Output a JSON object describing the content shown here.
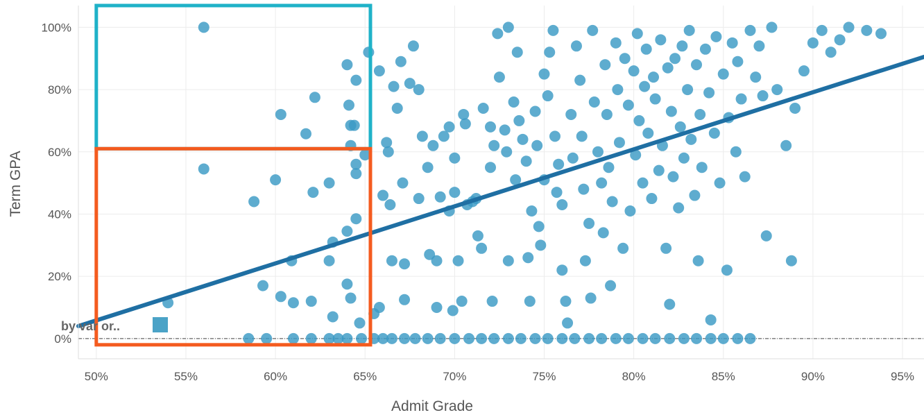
{
  "chart_data": {
    "type": "scatter",
    "xlabel": "Admit Grade",
    "ylabel": "Term GPA",
    "xlim": [
      0.49,
      0.962
    ],
    "ylim": [
      -0.065,
      1.07
    ],
    "x_ticks": [
      "50%",
      "55%",
      "60%",
      "65%",
      "70%",
      "75%",
      "80%",
      "85%",
      "90%",
      "95%"
    ],
    "x_tick_values": [
      0.5,
      0.55,
      0.6,
      0.65,
      0.7,
      0.75,
      0.8,
      0.85,
      0.9,
      0.95
    ],
    "y_ticks": [
      "0%",
      "20%",
      "40%",
      "60%",
      "80%",
      "100%"
    ],
    "y_tick_values": [
      0,
      0.2,
      0.4,
      0.6,
      0.8,
      1.0
    ],
    "grid": true,
    "legend": {
      "text": "by var or..",
      "placement": "bottom-left",
      "color": "#4ba3c7"
    },
    "point_color": "#3a9ac4",
    "trend_color": "#1f6fa3",
    "box_colors": {
      "upper": "#1fb2c8",
      "lower": "#f45b1f"
    },
    "trendline": {
      "x": [
        0.49,
        0.962
      ],
      "y": [
        0.04,
        0.905
      ]
    },
    "highlight_boxes": [
      {
        "x": [
          0.5,
          0.653
        ],
        "y": [
          0.61,
          1.07
        ]
      },
      {
        "x": [
          0.5,
          0.653
        ],
        "y": [
          -0.02,
          0.61
        ]
      }
    ],
    "points": [
      [
        0.56,
        1.0
      ],
      [
        0.56,
        0.545
      ],
      [
        0.54,
        0.115
      ],
      [
        0.588,
        0.44
      ],
      [
        0.593,
        0.17
      ],
      [
        0.6,
        0.51
      ],
      [
        0.603,
        0.72
      ],
      [
        0.603,
        0.135
      ],
      [
        0.609,
        0.25
      ],
      [
        0.61,
        0.115
      ],
      [
        0.617,
        0.658
      ],
      [
        0.62,
        0.12
      ],
      [
        0.621,
        0.47
      ],
      [
        0.622,
        0.775
      ],
      [
        0.63,
        0.5
      ],
      [
        0.63,
        0.25
      ],
      [
        0.632,
        0.31
      ],
      [
        0.632,
        0.07
      ],
      [
        0.64,
        0.88
      ],
      [
        0.641,
        0.75
      ],
      [
        0.642,
        0.62
      ],
      [
        0.642,
        0.685
      ],
      [
        0.644,
        0.685
      ],
      [
        0.645,
        0.83
      ],
      [
        0.645,
        0.56
      ],
      [
        0.645,
        0.53
      ],
      [
        0.645,
        0.385
      ],
      [
        0.64,
        0.345
      ],
      [
        0.64,
        0.175
      ],
      [
        0.642,
        0.13
      ],
      [
        0.647,
        0.05
      ],
      [
        0.65,
        0.59
      ],
      [
        0.652,
        0.92
      ],
      [
        0.655,
        0.08
      ],
      [
        0.658,
        0.1
      ],
      [
        0.658,
        0.86
      ],
      [
        0.66,
        0.46
      ],
      [
        0.662,
        0.63
      ],
      [
        0.663,
        0.6
      ],
      [
        0.664,
        0.43
      ],
      [
        0.665,
        0.25
      ],
      [
        0.666,
        0.81
      ],
      [
        0.668,
        0.74
      ],
      [
        0.67,
        0.89
      ],
      [
        0.671,
        0.5
      ],
      [
        0.672,
        0.24
      ],
      [
        0.672,
        0.125
      ],
      [
        0.675,
        0.82
      ],
      [
        0.677,
        0.94
      ],
      [
        0.68,
        0.8
      ],
      [
        0.68,
        0.45
      ],
      [
        0.682,
        0.65
      ],
      [
        0.685,
        0.55
      ],
      [
        0.686,
        0.27
      ],
      [
        0.688,
        0.62
      ],
      [
        0.69,
        0.25
      ],
      [
        0.69,
        0.1
      ],
      [
        0.692,
        0.455
      ],
      [
        0.694,
        0.65
      ],
      [
        0.697,
        0.68
      ],
      [
        0.697,
        0.41
      ],
      [
        0.699,
        0.09
      ],
      [
        0.7,
        0.58
      ],
      [
        0.7,
        0.47
      ],
      [
        0.702,
        0.25
      ],
      [
        0.704,
        0.12
      ],
      [
        0.705,
        0.72
      ],
      [
        0.706,
        0.69
      ],
      [
        0.707,
        0.43
      ],
      [
        0.71,
        0.44
      ],
      [
        0.712,
        0.45
      ],
      [
        0.713,
        0.33
      ],
      [
        0.715,
        0.29
      ],
      [
        0.716,
        0.74
      ],
      [
        0.72,
        0.68
      ],
      [
        0.72,
        0.55
      ],
      [
        0.721,
        0.12
      ],
      [
        0.722,
        0.62
      ],
      [
        0.724,
        0.98
      ],
      [
        0.725,
        0.84
      ],
      [
        0.728,
        0.67
      ],
      [
        0.729,
        0.6
      ],
      [
        0.73,
        0.25
      ],
      [
        0.73,
        1.0
      ],
      [
        0.733,
        0.76
      ],
      [
        0.734,
        0.51
      ],
      [
        0.735,
        0.92
      ],
      [
        0.736,
        0.7
      ],
      [
        0.738,
        0.64
      ],
      [
        0.74,
        0.57
      ],
      [
        0.741,
        0.26
      ],
      [
        0.742,
        0.12
      ],
      [
        0.743,
        0.41
      ],
      [
        0.745,
        0.73
      ],
      [
        0.746,
        0.62
      ],
      [
        0.747,
        0.36
      ],
      [
        0.748,
        0.3
      ],
      [
        0.75,
        0.51
      ],
      [
        0.75,
        0.85
      ],
      [
        0.752,
        0.78
      ],
      [
        0.753,
        0.92
      ],
      [
        0.755,
        0.99
      ],
      [
        0.756,
        0.65
      ],
      [
        0.757,
        0.47
      ],
      [
        0.758,
        0.56
      ],
      [
        0.76,
        0.43
      ],
      [
        0.76,
        0.22
      ],
      [
        0.762,
        0.12
      ],
      [
        0.763,
        0.05
      ],
      [
        0.765,
        0.72
      ],
      [
        0.766,
        0.58
      ],
      [
        0.768,
        0.94
      ],
      [
        0.77,
        0.83
      ],
      [
        0.771,
        0.65
      ],
      [
        0.772,
        0.48
      ],
      [
        0.773,
        0.25
      ],
      [
        0.775,
        0.37
      ],
      [
        0.776,
        0.13
      ],
      [
        0.777,
        0.99
      ],
      [
        0.778,
        0.76
      ],
      [
        0.78,
        0.6
      ],
      [
        0.782,
        0.5
      ],
      [
        0.783,
        0.34
      ],
      [
        0.784,
        0.88
      ],
      [
        0.785,
        0.72
      ],
      [
        0.786,
        0.55
      ],
      [
        0.787,
        0.17
      ],
      [
        0.788,
        0.44
      ],
      [
        0.79,
        0.95
      ],
      [
        0.791,
        0.8
      ],
      [
        0.792,
        0.63
      ],
      [
        0.794,
        0.29
      ],
      [
        0.795,
        0.9
      ],
      [
        0.797,
        0.75
      ],
      [
        0.798,
        0.41
      ],
      [
        0.8,
        0.86
      ],
      [
        0.801,
        0.59
      ],
      [
        0.802,
        0.98
      ],
      [
        0.803,
        0.7
      ],
      [
        0.805,
        0.5
      ],
      [
        0.806,
        0.81
      ],
      [
        0.807,
        0.93
      ],
      [
        0.808,
        0.66
      ],
      [
        0.81,
        0.45
      ],
      [
        0.811,
        0.84
      ],
      [
        0.812,
        0.77
      ],
      [
        0.814,
        0.54
      ],
      [
        0.815,
        0.96
      ],
      [
        0.816,
        0.62
      ],
      [
        0.818,
        0.29
      ],
      [
        0.819,
        0.87
      ],
      [
        0.82,
        0.11
      ],
      [
        0.821,
        0.73
      ],
      [
        0.822,
        0.52
      ],
      [
        0.823,
        0.9
      ],
      [
        0.825,
        0.42
      ],
      [
        0.826,
        0.68
      ],
      [
        0.827,
        0.94
      ],
      [
        0.828,
        0.58
      ],
      [
        0.83,
        0.8
      ],
      [
        0.831,
        0.99
      ],
      [
        0.832,
        0.64
      ],
      [
        0.834,
        0.46
      ],
      [
        0.835,
        0.88
      ],
      [
        0.836,
        0.25
      ],
      [
        0.837,
        0.72
      ],
      [
        0.838,
        0.55
      ],
      [
        0.84,
        0.93
      ],
      [
        0.842,
        0.79
      ],
      [
        0.843,
        0.06
      ],
      [
        0.845,
        0.66
      ],
      [
        0.846,
        0.97
      ],
      [
        0.848,
        0.5
      ],
      [
        0.85,
        0.85
      ],
      [
        0.852,
        0.22
      ],
      [
        0.853,
        0.71
      ],
      [
        0.855,
        0.95
      ],
      [
        0.857,
        0.6
      ],
      [
        0.858,
        0.89
      ],
      [
        0.86,
        0.77
      ],
      [
        0.862,
        0.52
      ],
      [
        0.865,
        0.99
      ],
      [
        0.868,
        0.84
      ],
      [
        0.87,
        0.94
      ],
      [
        0.872,
        0.78
      ],
      [
        0.874,
        0.33
      ],
      [
        0.877,
        1.0
      ],
      [
        0.88,
        0.8
      ],
      [
        0.885,
        0.62
      ],
      [
        0.888,
        0.25
      ],
      [
        0.89,
        0.74
      ],
      [
        0.895,
        0.86
      ],
      [
        0.9,
        0.95
      ],
      [
        0.905,
        0.99
      ],
      [
        0.91,
        0.92
      ],
      [
        0.915,
        0.96
      ],
      [
        0.92,
        1.0
      ],
      [
        0.93,
        0.99
      ],
      [
        0.938,
        0.98
      ],
      [
        0.585,
        0.0
      ],
      [
        0.595,
        0.0
      ],
      [
        0.61,
        0.0
      ],
      [
        0.62,
        0.0
      ],
      [
        0.63,
        0.0
      ],
      [
        0.635,
        0.0
      ],
      [
        0.64,
        0.0
      ],
      [
        0.648,
        0.0
      ],
      [
        0.655,
        0.0
      ],
      [
        0.66,
        0.0
      ],
      [
        0.665,
        0.0
      ],
      [
        0.672,
        0.0
      ],
      [
        0.678,
        0.0
      ],
      [
        0.685,
        0.0
      ],
      [
        0.692,
        0.0
      ],
      [
        0.7,
        0.0
      ],
      [
        0.708,
        0.0
      ],
      [
        0.715,
        0.0
      ],
      [
        0.722,
        0.0
      ],
      [
        0.73,
        0.0
      ],
      [
        0.737,
        0.0
      ],
      [
        0.745,
        0.0
      ],
      [
        0.752,
        0.0
      ],
      [
        0.76,
        0.0
      ],
      [
        0.767,
        0.0
      ],
      [
        0.775,
        0.0
      ],
      [
        0.782,
        0.0
      ],
      [
        0.79,
        0.0
      ],
      [
        0.797,
        0.0
      ],
      [
        0.805,
        0.0
      ],
      [
        0.812,
        0.0
      ],
      [
        0.82,
        0.0
      ],
      [
        0.828,
        0.0
      ],
      [
        0.835,
        0.0
      ],
      [
        0.843,
        0.0
      ],
      [
        0.85,
        0.0
      ],
      [
        0.858,
        0.0
      ],
      [
        0.865,
        0.0
      ]
    ]
  }
}
